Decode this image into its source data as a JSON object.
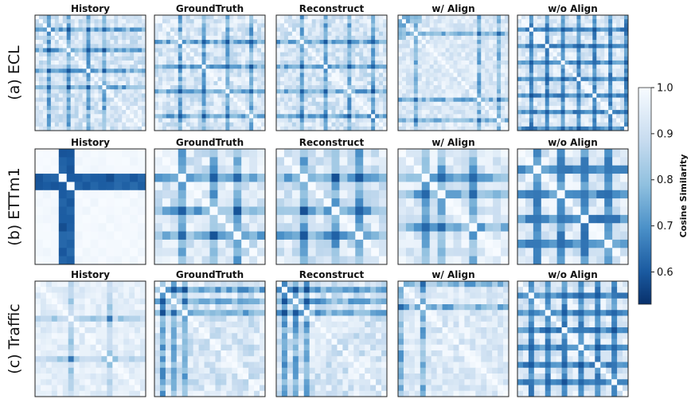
{
  "chart_data": {
    "type": "heatmap",
    "colormap": "Blues_r",
    "colors": {
      "low": "#08306b",
      "high": "#f7fbff"
    },
    "column_titles": [
      "History",
      "GroundTruth",
      "Reconstruct",
      "w/ Align",
      "w/o Align"
    ],
    "rows": [
      {
        "label": "(a) ECL",
        "grid_size": 28
      },
      {
        "label": "(b) ETTm1",
        "grid_size": 14
      },
      {
        "label": "(c) Traffic",
        "grid_size": 20
      }
    ],
    "colorbar": {
      "label": "Cosine Similarity",
      "range": [
        0.53,
        1.0
      ],
      "ticks": [
        "0.6",
        "0.7",
        "0.8",
        "0.9",
        "1.0"
      ],
      "tick_values": [
        0.6,
        0.7,
        0.8,
        0.9,
        1.0
      ]
    },
    "patterns": {
      "ECL": {
        "History": [
          3,
          8,
          13,
          17
        ],
        "GroundTruth": [
          6,
          12,
          18,
          24
        ],
        "Reconstruct": [
          6,
          12,
          18,
          24
        ],
        "w/ Align": [
          4,
          20,
          25
        ],
        "w/o Align": [
          3,
          7,
          11,
          15,
          19,
          23,
          27
        ]
      },
      "ETTm1": {
        "History": [
          3,
          4
        ],
        "GroundTruth": [
          3,
          7,
          10
        ],
        "Reconstruct": [
          3,
          7,
          10
        ],
        "w/ Align": [
          3,
          5,
          9
        ],
        "w/o Align": [
          2,
          5,
          8,
          11
        ]
      },
      "Traffic": {
        "History": [
          6,
          13
        ],
        "GroundTruth": [
          1,
          3,
          5
        ],
        "Reconstruct": [
          1,
          3,
          5
        ],
        "w/ Align": [
          0,
          4
        ],
        "w/o Align": [
          2,
          5,
          8,
          11,
          14,
          17
        ]
      }
    }
  }
}
